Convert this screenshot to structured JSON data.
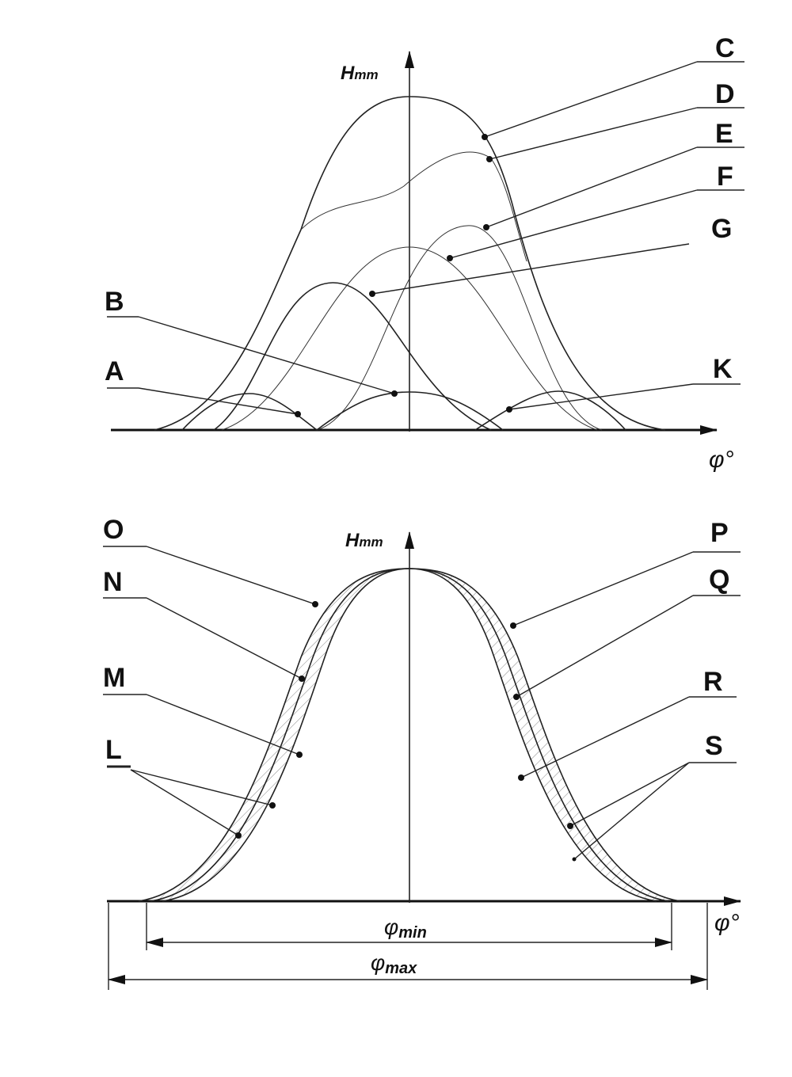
{
  "top": {
    "y_axis_label": {
      "symbol": "H",
      "subscript": "mm"
    },
    "x_axis_label": "φ°",
    "labels": [
      "A",
      "B",
      "C",
      "D",
      "E",
      "F",
      "G",
      "K"
    ]
  },
  "bottom": {
    "y_axis_label": {
      "symbol": "H",
      "subscript": "mm"
    },
    "x_axis_label": "φ°",
    "labels": [
      "O",
      "N",
      "M",
      "L",
      "P",
      "Q",
      "R",
      "S"
    ],
    "dimensions": [
      {
        "symbol": "φ",
        "subscript": "min"
      },
      {
        "symbol": "φ",
        "subscript": "max"
      }
    ]
  }
}
